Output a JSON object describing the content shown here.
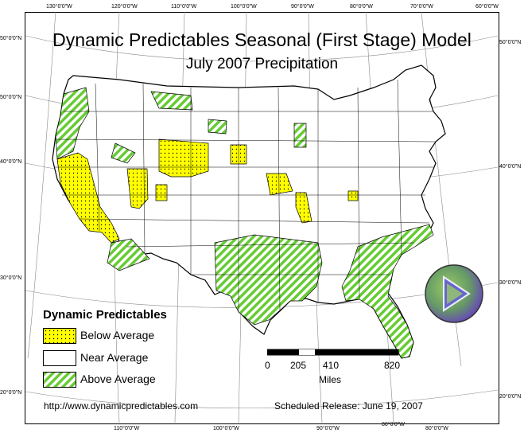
{
  "map": {
    "title": "Dynamic Predictables Seasonal (First Stage) Model",
    "subtitle": "July 2007 Precipitation",
    "graticule": {
      "top_longitudes": [
        "130°0'0\"W",
        "120°0'0\"W",
        "110°0'0\"W",
        "100°0'0\"W",
        "90°0'0\"W",
        "80°0'0\"W",
        "70°0'0\"W",
        "60°0'0\"W"
      ],
      "bottom_longitudes": [
        "110°0'0\"W",
        "100°0'0\"W",
        "90°0'0\"W",
        "80°0'0\"W",
        "20°0'0\"W"
      ],
      "left_latitudes": [
        "50°0'0\"N",
        "40°0'0\"N",
        "30°0'0\"N",
        "20°0'0\"N"
      ],
      "left_extra": "50°0'0\"N",
      "right_latitudes": [
        "50°0'0\"N",
        "40°0'0\"N",
        "30°0'0\"N",
        "20°0'0\"N"
      ]
    },
    "colors": {
      "below_average": "#ffff00",
      "near_average": "#ffffff",
      "above_average": "#66cc33",
      "boundary": "#000000"
    }
  },
  "legend": {
    "title": "Dynamic Predictables",
    "items": [
      {
        "label": "Below Average",
        "pattern": "yellow-dots"
      },
      {
        "label": "Near Average",
        "pattern": "white"
      },
      {
        "label": "Above Average",
        "pattern": "green-hatch"
      }
    ]
  },
  "scale": {
    "ticks": [
      "0",
      "205",
      "410",
      "820"
    ],
    "unit": "Miles"
  },
  "footer": {
    "url": "http://www.dynamicpredictables.com",
    "release": "Scheduled Release: June 19, 2007"
  },
  "logo": {
    "icon": "play-triangle-logo",
    "colors": [
      "#6633cc",
      "#66cc33",
      "#3366cc"
    ]
  }
}
